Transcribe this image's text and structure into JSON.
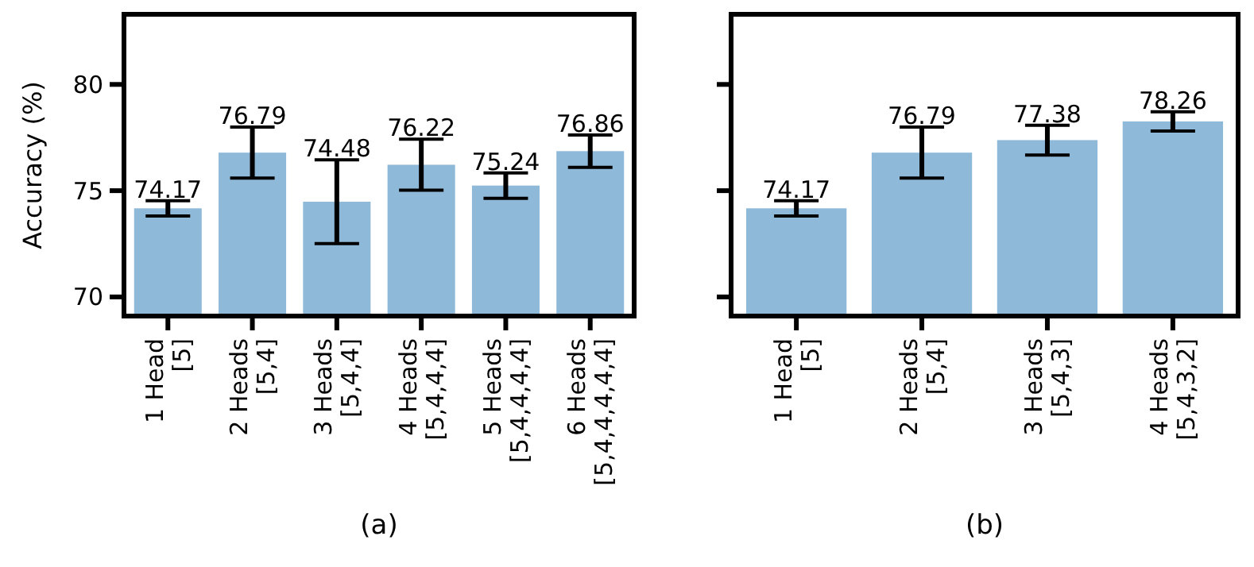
{
  "chart_data": [
    {
      "type": "bar",
      "ylabel": "Accuracy (%)",
      "xlabel": "(a)",
      "categories": [
        "1 Head\n[5]",
        "2 Heads\n[5,4]",
        "3 Heads\n[5,4,4]",
        "4 Heads\n[5,4,4,4]",
        "5 Heads\n[5,4,4,4,4]",
        "6 Heads\n[5,4,4,4,4,4]"
      ],
      "values": [
        74.17,
        76.79,
        74.48,
        76.22,
        75.24,
        76.86
      ],
      "errors": [
        0.36,
        1.2,
        1.97,
        1.2,
        0.6,
        0.76
      ],
      "color": "#8fb9d9",
      "data_labels": true,
      "ylim": [
        69.1,
        83.3
      ],
      "yticks": [
        70,
        75,
        80
      ]
    },
    {
      "type": "bar",
      "xlabel": "(b)",
      "categories": [
        "1 Head\n[5]",
        "2 Heads\n[5,4]",
        "3 Heads\n[5,4,3]",
        "4 Heads\n[5,4,3,2]"
      ],
      "values": [
        74.17,
        76.79,
        77.38,
        78.26
      ],
      "errors": [
        0.36,
        1.2,
        0.7,
        0.45
      ],
      "color": "#8fb9d9",
      "data_labels": true,
      "ylim": [
        69.1,
        83.3
      ],
      "yticks": [
        70,
        75,
        80
      ],
      "tick_labels": "x"
    }
  ]
}
